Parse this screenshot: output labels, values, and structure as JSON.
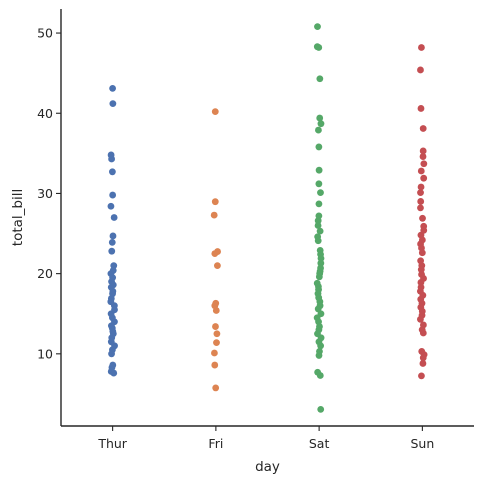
{
  "chart_data": {
    "type": "scatter",
    "title": "",
    "xlabel": "day",
    "ylabel": "total_bill",
    "categories": [
      "Thur",
      "Fri",
      "Sat",
      "Sun"
    ],
    "ylim": [
      1.0,
      53.0
    ],
    "yticks": [
      10,
      20,
      30,
      40,
      50
    ],
    "grid": false,
    "legend": "none",
    "colors": [
      "#4c72b0",
      "#dd8452",
      "#55a868",
      "#c44e52"
    ],
    "series": [
      {
        "category": "Thur",
        "values": [
          43.1,
          41.2,
          34.8,
          34.3,
          32.7,
          29.8,
          28.4,
          27.0,
          24.7,
          23.9,
          22.8,
          21.0,
          20.4,
          20.0,
          19.5,
          19.0,
          18.6,
          18.3,
          17.8,
          17.5,
          16.9,
          16.5,
          16.0,
          15.5,
          15.0,
          14.5,
          14.0,
          13.5,
          13.2,
          12.8,
          12.5,
          12.0,
          11.5,
          11.0,
          10.5,
          10.0,
          8.6,
          8.3,
          7.8,
          7.6
        ]
      },
      {
        "category": "Fri",
        "values": [
          40.2,
          28.97,
          27.3,
          22.75,
          22.5,
          21.0,
          16.3,
          16.0,
          15.4,
          13.4,
          12.5,
          11.4,
          10.1,
          8.6,
          5.75
        ]
      },
      {
        "category": "Sat",
        "values": [
          50.8,
          48.3,
          48.2,
          44.3,
          39.4,
          38.7,
          37.9,
          35.8,
          32.9,
          31.2,
          30.1,
          28.7,
          27.2,
          26.6,
          26.0,
          25.3,
          24.6,
          24.1,
          22.9,
          22.4,
          21.9,
          21.3,
          20.7,
          20.3,
          20.0,
          19.6,
          18.8,
          18.4,
          18.0,
          17.5,
          17.0,
          16.5,
          16.0,
          15.6,
          15.0,
          14.5,
          14.0,
          13.4,
          13.0,
          12.5,
          12.0,
          11.5,
          11.0,
          10.3,
          9.8,
          7.7,
          7.3,
          3.07
        ]
      },
      {
        "category": "Sun",
        "values": [
          48.2,
          45.4,
          40.6,
          38.1,
          35.3,
          34.6,
          33.7,
          32.8,
          31.9,
          30.8,
          30.1,
          29.0,
          28.2,
          26.9,
          25.9,
          25.4,
          24.8,
          24.2,
          23.7,
          23.2,
          22.6,
          21.6,
          21.0,
          20.5,
          19.9,
          19.4,
          18.9,
          18.3,
          17.8,
          17.3,
          16.8,
          16.3,
          15.8,
          15.3,
          14.8,
          14.3,
          13.6,
          13.0,
          12.6,
          10.3,
          9.9,
          9.5,
          8.8,
          7.25
        ]
      }
    ]
  }
}
